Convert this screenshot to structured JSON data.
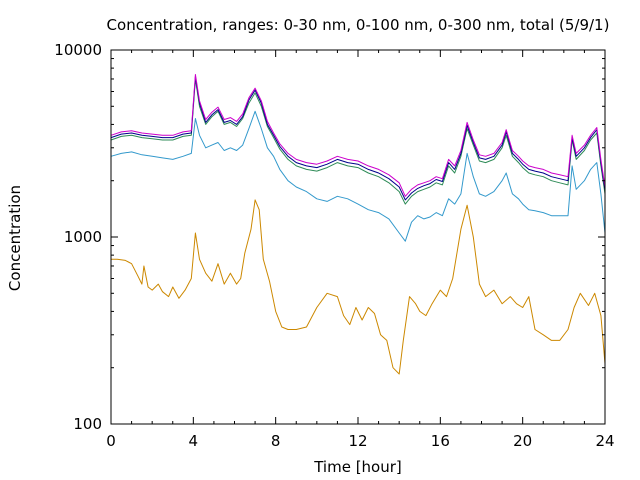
{
  "chart_data": {
    "type": "line",
    "title": "Concentration, ranges: 0-30 nm, 0-100 nm, 0-300 nm, total (5/9/1)",
    "xlabel": "Time [hour]",
    "ylabel": "Concentration",
    "xlim": [
      0,
      24
    ],
    "ylim": [
      100,
      10000
    ],
    "yscale": "log",
    "xticks": [
      0,
      4,
      8,
      12,
      16,
      20,
      24
    ],
    "yticks": [
      100,
      1000,
      10000
    ],
    "grid": false,
    "legend": "none",
    "series": [
      {
        "color": "#cc8800",
        "x": [
          0,
          0.3,
          0.7,
          1.0,
          1.3,
          1.5,
          1.6,
          1.8,
          2.0,
          2.3,
          2.5,
          2.8,
          3.0,
          3.3,
          3.6,
          3.9,
          4.1,
          4.3,
          4.6,
          4.9,
          5.2,
          5.5,
          5.8,
          6.1,
          6.3,
          6.5,
          6.8,
          7.0,
          7.2,
          7.4,
          7.7,
          8.0,
          8.3,
          8.6,
          9.0,
          9.5,
          10.0,
          10.5,
          11.0,
          11.3,
          11.6,
          11.9,
          12.2,
          12.5,
          12.8,
          13.1,
          13.4,
          13.7,
          14.0,
          14.2,
          14.5,
          14.8,
          15.0,
          15.3,
          15.6,
          16.0,
          16.3,
          16.6,
          17.0,
          17.3,
          17.6,
          17.9,
          18.2,
          18.6,
          19.0,
          19.4,
          19.7,
          20.0,
          20.3,
          20.6,
          21.0,
          21.4,
          21.8,
          22.2,
          22.5,
          22.8,
          23.2,
          23.5,
          23.8,
          24.0
        ],
        "y": [
          760,
          760,
          750,
          720,
          620,
          560,
          700,
          540,
          520,
          560,
          510,
          480,
          540,
          470,
          520,
          600,
          1050,
          760,
          640,
          580,
          720,
          560,
          640,
          560,
          600,
          820,
          1100,
          1580,
          1400,
          760,
          580,
          400,
          330,
          320,
          320,
          330,
          420,
          500,
          480,
          380,
          340,
          420,
          360,
          420,
          390,
          300,
          280,
          200,
          185,
          280,
          480,
          440,
          400,
          380,
          440,
          520,
          480,
          600,
          1100,
          1480,
          1000,
          560,
          480,
          520,
          440,
          480,
          440,
          420,
          480,
          320,
          300,
          280,
          280,
          320,
          420,
          500,
          430,
          500,
          380,
          210
        ]
      },
      {
        "color": "#3399cc",
        "x": [
          0,
          0.5,
          1.0,
          1.5,
          2.0,
          2.5,
          3.0,
          3.5,
          3.9,
          4.1,
          4.3,
          4.6,
          4.9,
          5.2,
          5.5,
          5.8,
          6.1,
          6.4,
          6.7,
          7.0,
          7.3,
          7.6,
          7.9,
          8.2,
          8.6,
          9.0,
          9.5,
          10.0,
          10.5,
          11.0,
          11.5,
          12.0,
          12.5,
          13.0,
          13.5,
          14.0,
          14.3,
          14.6,
          14.9,
          15.2,
          15.5,
          15.8,
          16.1,
          16.4,
          16.7,
          17.0,
          17.3,
          17.6,
          17.9,
          18.2,
          18.6,
          19.0,
          19.2,
          19.5,
          19.8,
          20.0,
          20.3,
          20.6,
          21.0,
          21.4,
          21.8,
          22.2,
          22.4,
          22.6,
          23.0,
          23.3,
          23.6,
          23.8,
          24.0
        ],
        "y": [
          2700,
          2800,
          2850,
          2750,
          2700,
          2650,
          2600,
          2700,
          2800,
          4300,
          3500,
          3000,
          3100,
          3200,
          2900,
          3000,
          2900,
          3100,
          3800,
          4700,
          3800,
          3000,
          2700,
          2300,
          2000,
          1850,
          1750,
          1600,
          1550,
          1650,
          1600,
          1500,
          1400,
          1350,
          1250,
          1050,
          950,
          1200,
          1300,
          1250,
          1280,
          1350,
          1300,
          1600,
          1500,
          1700,
          2800,
          2100,
          1700,
          1650,
          1750,
          2000,
          2200,
          1700,
          1600,
          1500,
          1400,
          1380,
          1350,
          1300,
          1300,
          1300,
          2400,
          1800,
          2000,
          2300,
          2500,
          1700,
          1050
        ]
      },
      {
        "color": "#2e8b57",
        "x": [
          0,
          0.5,
          1.0,
          1.5,
          2.0,
          2.5,
          3.0,
          3.5,
          3.9,
          4.1,
          4.3,
          4.6,
          4.9,
          5.2,
          5.5,
          5.8,
          6.1,
          6.4,
          6.7,
          7.0,
          7.3,
          7.6,
          7.9,
          8.2,
          8.6,
          9.0,
          9.5,
          10.0,
          10.5,
          11.0,
          11.5,
          12.0,
          12.5,
          13.0,
          13.5,
          14.0,
          14.3,
          14.6,
          14.9,
          15.2,
          15.5,
          15.8,
          16.1,
          16.4,
          16.7,
          17.0,
          17.3,
          17.6,
          17.9,
          18.2,
          18.6,
          19.0,
          19.2,
          19.5,
          19.8,
          20.0,
          20.3,
          20.6,
          21.0,
          21.4,
          21.8,
          22.2,
          22.4,
          22.6,
          23.0,
          23.3,
          23.6,
          23.8,
          24.0
        ],
        "y": [
          3300,
          3450,
          3500,
          3400,
          3350,
          3300,
          3300,
          3450,
          3500,
          7000,
          5000,
          4000,
          4400,
          4700,
          4000,
          4100,
          3900,
          4300,
          5200,
          5900,
          5000,
          3900,
          3400,
          2950,
          2600,
          2400,
          2300,
          2250,
          2350,
          2500,
          2400,
          2350,
          2200,
          2100,
          1950,
          1750,
          1500,
          1650,
          1750,
          1800,
          1850,
          1950,
          1900,
          2400,
          2200,
          2700,
          3800,
          3100,
          2550,
          2500,
          2600,
          3000,
          3500,
          2700,
          2500,
          2350,
          2200,
          2150,
          2100,
          2000,
          1950,
          1900,
          3300,
          2600,
          2900,
          3300,
          3600,
          2400,
          1700
        ]
      },
      {
        "color": "#00008b",
        "x": [
          0,
          0.5,
          1.0,
          1.5,
          2.0,
          2.5,
          3.0,
          3.5,
          3.9,
          4.1,
          4.3,
          4.6,
          4.9,
          5.2,
          5.5,
          5.8,
          6.1,
          6.4,
          6.7,
          7.0,
          7.3,
          7.6,
          7.9,
          8.2,
          8.6,
          9.0,
          9.5,
          10.0,
          10.5,
          11.0,
          11.5,
          12.0,
          12.5,
          13.0,
          13.5,
          14.0,
          14.3,
          14.6,
          14.9,
          15.2,
          15.5,
          15.8,
          16.1,
          16.4,
          16.7,
          17.0,
          17.3,
          17.6,
          17.9,
          18.2,
          18.6,
          19.0,
          19.2,
          19.5,
          19.8,
          20.0,
          20.3,
          20.6,
          21.0,
          21.4,
          21.8,
          22.2,
          22.4,
          22.6,
          23.0,
          23.3,
          23.6,
          23.8,
          24.0
        ],
        "y": [
          3400,
          3550,
          3600,
          3500,
          3450,
          3400,
          3400,
          3550,
          3600,
          7200,
          5200,
          4100,
          4500,
          4800,
          4100,
          4200,
          4000,
          4400,
          5400,
          6100,
          5200,
          4000,
          3500,
          3050,
          2700,
          2500,
          2400,
          2350,
          2450,
          2600,
          2500,
          2450,
          2300,
          2200,
          2050,
          1850,
          1580,
          1720,
          1820,
          1880,
          1930,
          2030,
          1980,
          2500,
          2300,
          2800,
          3950,
          3200,
          2650,
          2600,
          2700,
          3100,
          3650,
          2800,
          2600,
          2450,
          2300,
          2250,
          2200,
          2100,
          2050,
          2000,
          3400,
          2700,
          3000,
          3400,
          3750,
          2500,
          1780
        ]
      },
      {
        "color": "#cc00cc",
        "x": [
          0,
          0.5,
          1.0,
          1.5,
          2.0,
          2.5,
          3.0,
          3.5,
          3.9,
          4.1,
          4.3,
          4.6,
          4.9,
          5.2,
          5.5,
          5.8,
          6.1,
          6.4,
          6.7,
          7.0,
          7.3,
          7.6,
          7.9,
          8.2,
          8.6,
          9.0,
          9.5,
          10.0,
          10.5,
          11.0,
          11.5,
          12.0,
          12.5,
          13.0,
          13.5,
          14.0,
          14.3,
          14.6,
          14.9,
          15.2,
          15.5,
          15.8,
          16.1,
          16.4,
          16.7,
          17.0,
          17.3,
          17.6,
          17.9,
          18.2,
          18.6,
          19.0,
          19.2,
          19.5,
          19.8,
          20.0,
          20.3,
          20.6,
          21.0,
          21.4,
          21.8,
          22.2,
          22.4,
          22.6,
          23.0,
          23.3,
          23.6,
          23.8,
          24.0
        ],
        "y": [
          3500,
          3650,
          3700,
          3600,
          3550,
          3500,
          3500,
          3650,
          3700,
          7400,
          5350,
          4250,
          4650,
          4950,
          4250,
          4350,
          4150,
          4550,
          5550,
          6250,
          5350,
          4150,
          3600,
          3150,
          2800,
          2600,
          2500,
          2450,
          2550,
          2700,
          2600,
          2550,
          2400,
          2300,
          2150,
          1950,
          1650,
          1800,
          1900,
          1950,
          2000,
          2100,
          2050,
          2600,
          2400,
          2900,
          4100,
          3300,
          2750,
          2700,
          2800,
          3200,
          3750,
          2900,
          2700,
          2550,
          2400,
          2350,
          2300,
          2200,
          2150,
          2100,
          3500,
          2800,
          3100,
          3500,
          3850,
          2600,
          1850
        ]
      }
    ]
  }
}
